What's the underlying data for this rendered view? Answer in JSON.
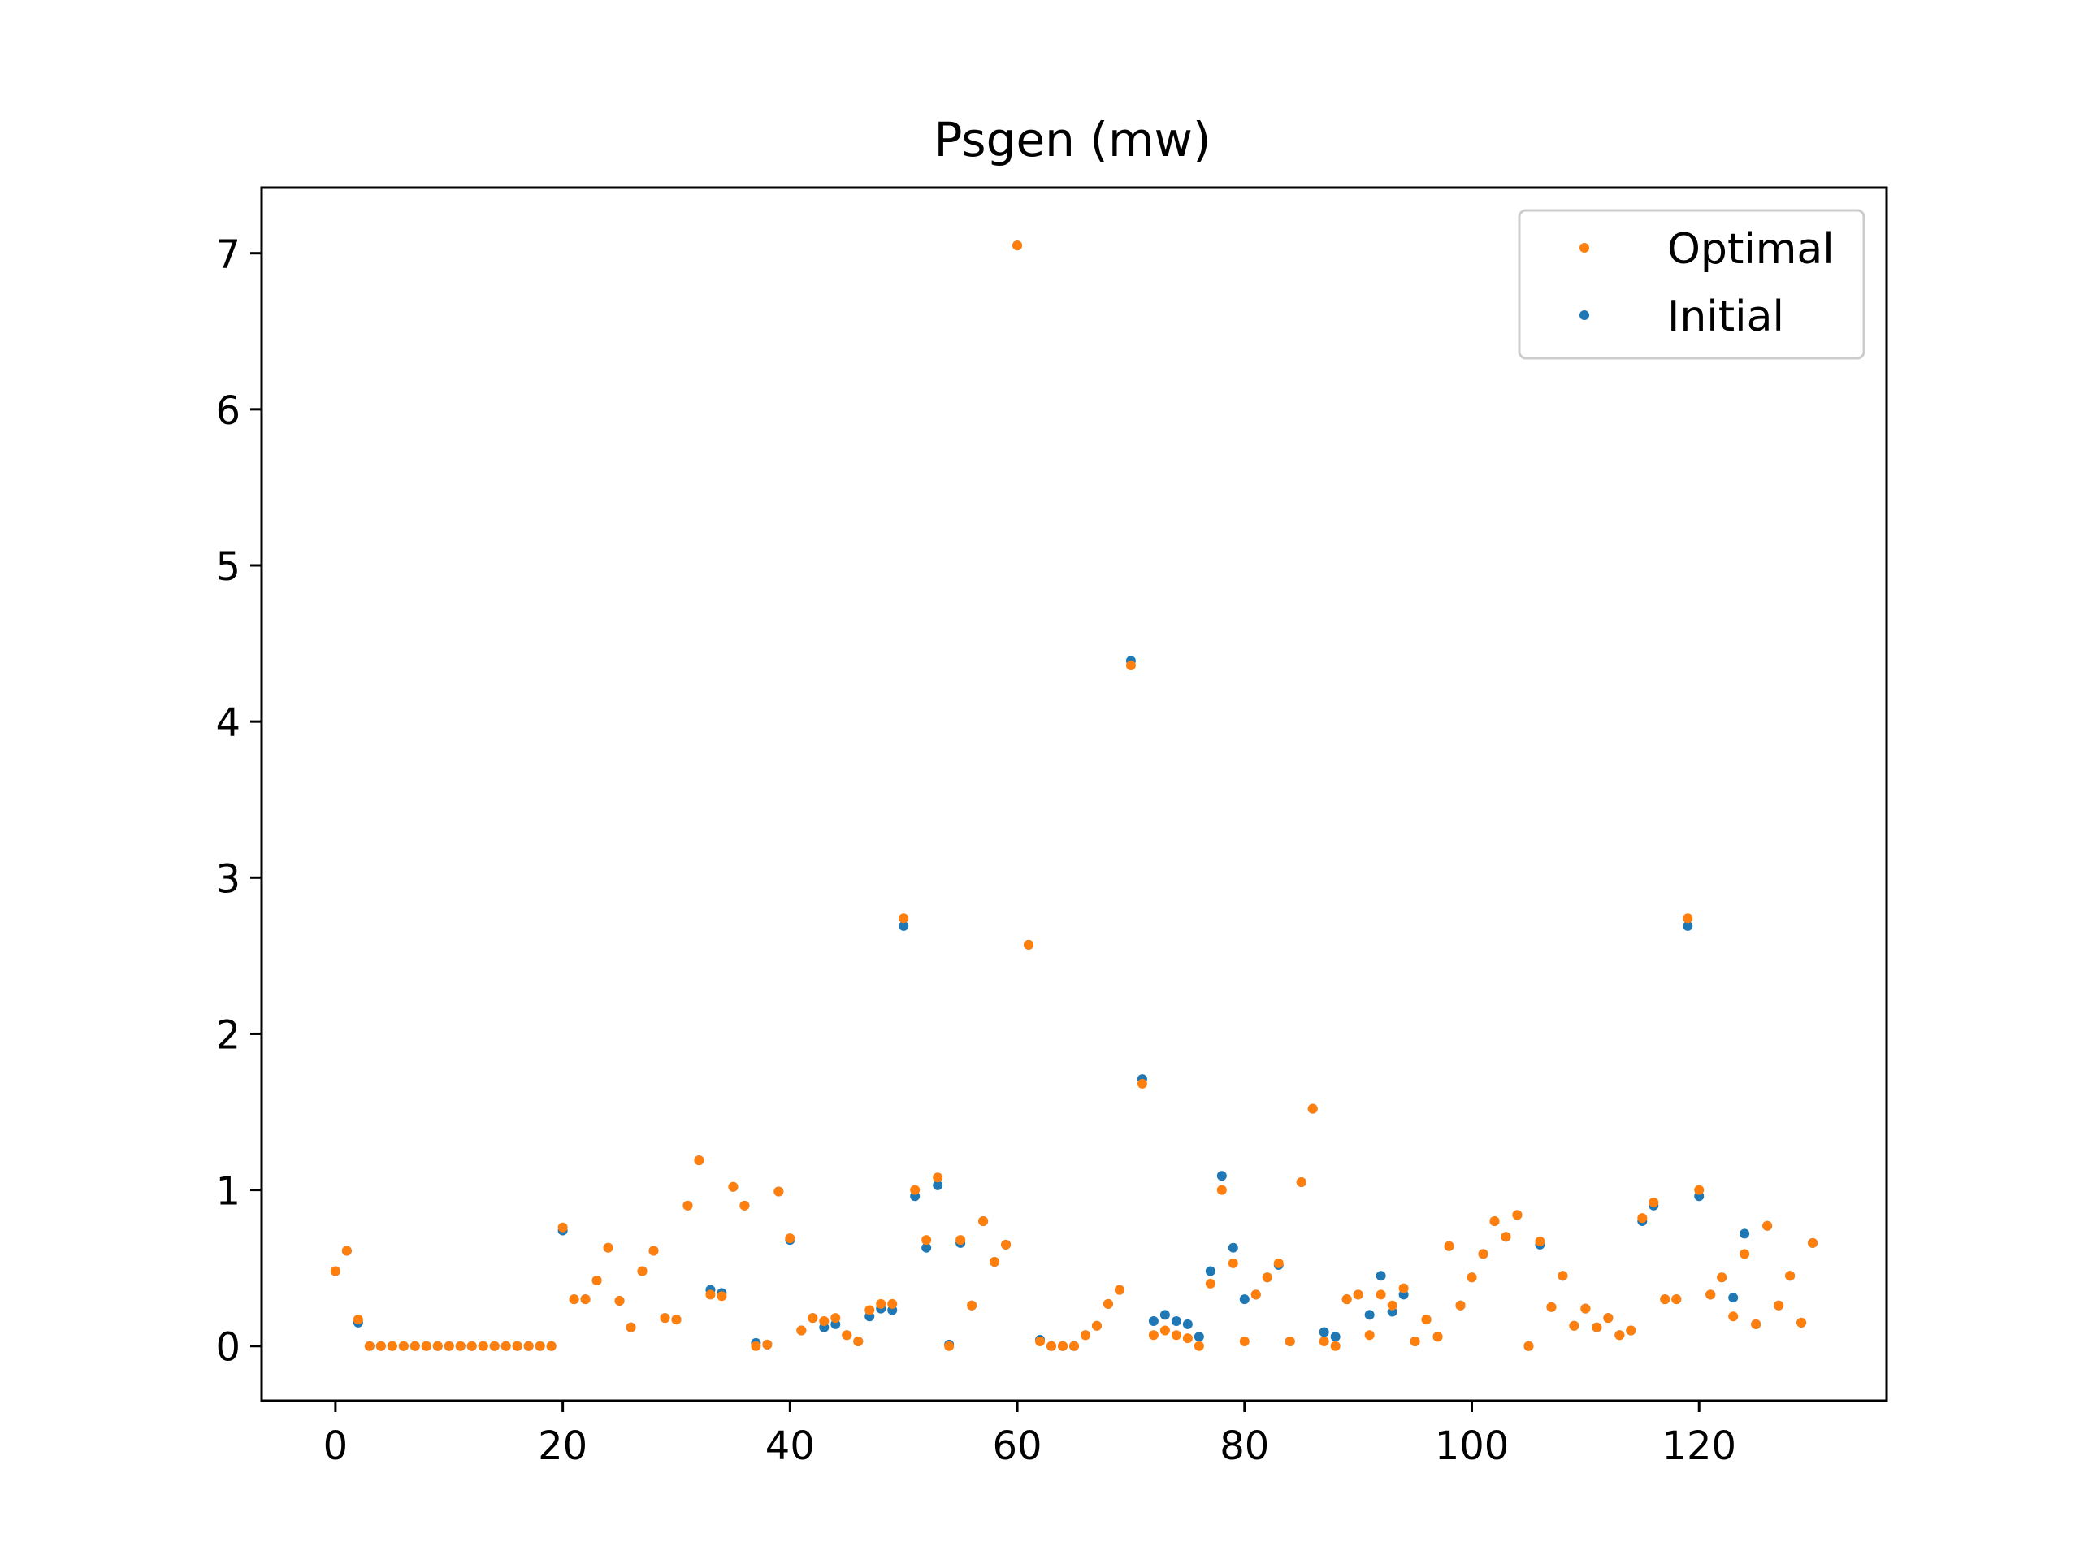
{
  "chart_data": {
    "type": "scatter",
    "title": "Psgen (mw)",
    "xlabel": "",
    "ylabel": "",
    "xlim": [
      -6.5,
      136.5
    ],
    "ylim": [
      -0.35,
      7.42
    ],
    "xticks": [
      0,
      20,
      40,
      60,
      80,
      100,
      120
    ],
    "yticks": [
      0,
      1,
      2,
      3,
      4,
      5,
      6,
      7
    ],
    "grid": false,
    "legend_position": "top-right",
    "series": [
      {
        "name": "Optimal",
        "color": "#ff7f0e",
        "x": [
          0,
          1,
          2,
          3,
          4,
          5,
          6,
          7,
          8,
          9,
          10,
          11,
          12,
          13,
          14,
          15,
          16,
          17,
          18,
          19,
          20,
          21,
          22,
          23,
          24,
          25,
          26,
          27,
          28,
          29,
          30,
          31,
          32,
          33,
          34,
          35,
          36,
          37,
          38,
          39,
          40,
          41,
          42,
          43,
          44,
          45,
          46,
          47,
          48,
          49,
          50,
          51,
          52,
          53,
          54,
          55,
          56,
          57,
          58,
          59,
          60,
          61,
          62,
          63,
          64,
          65,
          66,
          67,
          68,
          69,
          70,
          71,
          72,
          73,
          74,
          75,
          76,
          77,
          78,
          79,
          80,
          81,
          82,
          83,
          84,
          85,
          86,
          87,
          88,
          89,
          90,
          91,
          92,
          93,
          94,
          95,
          96,
          97,
          98,
          99,
          100,
          101,
          102,
          103,
          104,
          105,
          106,
          107,
          108,
          109,
          110,
          111,
          112,
          113,
          114,
          115,
          116,
          117,
          118,
          119,
          120,
          121,
          122,
          123,
          124,
          125,
          126,
          127,
          128,
          129,
          130
        ],
        "y": [
          0.48,
          0.61,
          0.17,
          0,
          0,
          0,
          0,
          0,
          0,
          0,
          0,
          0,
          0,
          0,
          0,
          0,
          0,
          0,
          0,
          0,
          0.76,
          0.3,
          0.3,
          0.42,
          0.63,
          0.29,
          0.12,
          0.48,
          0.61,
          0.18,
          0.17,
          0.9,
          1.19,
          0.33,
          0.32,
          1.02,
          0.9,
          0,
          0.01,
          0.99,
          0.69,
          0.1,
          0.18,
          0.16,
          0.18,
          0.07,
          0.03,
          0.23,
          0.27,
          0.27,
          2.74,
          1.0,
          0.68,
          1.08,
          0,
          0.68,
          0.26,
          0.8,
          0.54,
          0.65,
          7.05,
          2.57,
          0.03,
          0,
          0,
          0,
          0.07,
          0.13,
          0.27,
          0.36,
          4.36,
          1.68,
          0.07,
          0.1,
          0.07,
          0.05,
          0,
          0.4,
          1.0,
          0.53,
          0.03,
          0.33,
          0.44,
          0.53,
          0.03,
          1.05,
          1.52,
          0.03,
          0,
          0.3,
          0.33,
          0.07,
          0.33,
          0.26,
          0.37,
          0.03,
          0.17,
          0.06,
          0.64,
          0.26,
          0.44,
          0.59,
          0.8,
          0.7,
          0.84,
          0,
          0.67,
          0.25,
          0.45,
          0.13,
          0.24,
          0.12,
          0.18,
          0.07,
          0.1,
          0.82,
          0.92,
          0.3,
          0.3,
          2.74,
          1.0,
          0.33,
          0.44,
          0.19,
          0.59,
          0.14,
          0.77,
          0.26,
          0.45,
          0.15,
          0.66
        ]
      },
      {
        "name": "Initial",
        "color": "#1f77b4",
        "x": [
          0,
          1,
          2,
          3,
          4,
          5,
          6,
          7,
          8,
          9,
          10,
          11,
          12,
          13,
          14,
          15,
          16,
          17,
          18,
          19,
          20,
          21,
          22,
          23,
          24,
          25,
          26,
          27,
          28,
          29,
          30,
          31,
          32,
          33,
          34,
          35,
          36,
          37,
          38,
          39,
          40,
          41,
          42,
          43,
          44,
          45,
          46,
          47,
          48,
          49,
          50,
          51,
          52,
          53,
          54,
          55,
          56,
          57,
          58,
          59,
          60,
          61,
          62,
          63,
          64,
          65,
          66,
          67,
          68,
          69,
          70,
          71,
          72,
          73,
          74,
          75,
          76,
          77,
          78,
          79,
          80,
          81,
          82,
          83,
          84,
          85,
          86,
          87,
          88,
          89,
          90,
          91,
          92,
          93,
          94,
          95,
          96,
          97,
          98,
          99,
          100,
          101,
          102,
          103,
          104,
          105,
          106,
          107,
          108,
          109,
          110,
          111,
          112,
          113,
          114,
          115,
          116,
          117,
          118,
          119,
          120,
          121,
          122,
          123,
          124,
          125,
          126,
          127,
          128,
          129,
          130
        ],
        "y": [
          0.48,
          0.61,
          0.15,
          0,
          0,
          0,
          0,
          0,
          0,
          0,
          0,
          0,
          0,
          0,
          0,
          0,
          0,
          0,
          0,
          0,
          0.74,
          0.3,
          0.3,
          0.42,
          0.63,
          0.29,
          0.12,
          0.48,
          0.61,
          0.18,
          0.17,
          0.9,
          1.19,
          0.36,
          0.34,
          1.02,
          0.9,
          0.02,
          0.01,
          0.99,
          0.68,
          0.1,
          0.18,
          0.12,
          0.14,
          0.07,
          0.03,
          0.19,
          0.24,
          0.23,
          2.69,
          0.96,
          0.63,
          1.03,
          0.01,
          0.66,
          0.26,
          0.8,
          0.54,
          0.65,
          7.05,
          2.57,
          0.04,
          0,
          0,
          0,
          0.07,
          0.13,
          0.27,
          0.36,
          4.39,
          1.71,
          0.16,
          0.2,
          0.16,
          0.14,
          0.06,
          0.48,
          1.09,
          0.63,
          0.3,
          0.33,
          0.44,
          0.52,
          0.03,
          1.05,
          1.52,
          0.09,
          0.06,
          0.3,
          0.33,
          0.2,
          0.45,
          0.22,
          0.33,
          0.03,
          0.17,
          0.06,
          0.64,
          0.26,
          0.44,
          0.59,
          0.8,
          0.7,
          0.84,
          0,
          0.65,
          0.25,
          0.45,
          0.13,
          0.24,
          0.12,
          0.18,
          0.07,
          0.1,
          0.8,
          0.9,
          0.3,
          0.3,
          2.69,
          0.96,
          0.33,
          0.44,
          0.31,
          0.72,
          0.14,
          0.77,
          0.26,
          0.45,
          0.15,
          0.66
        ]
      }
    ]
  }
}
